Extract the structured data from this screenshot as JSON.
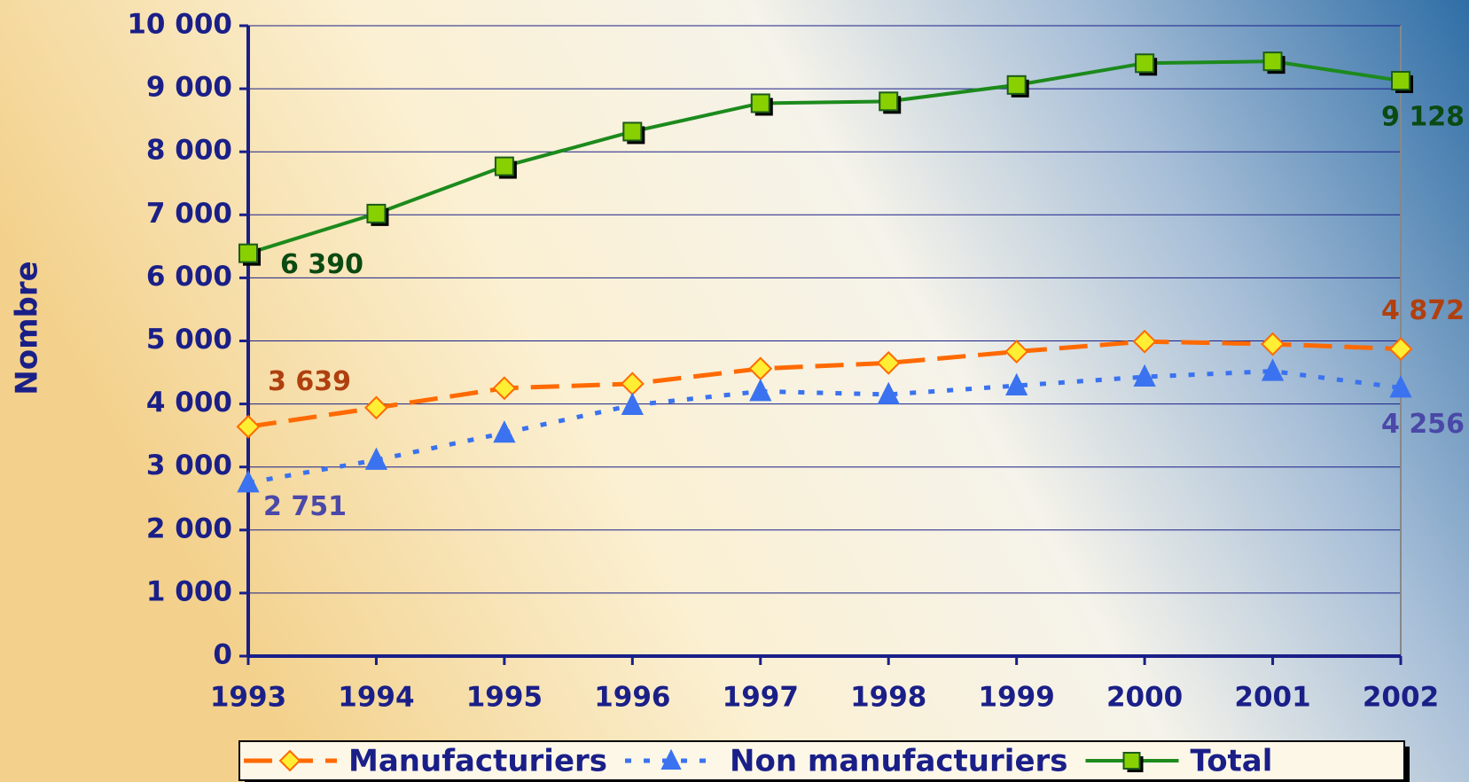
{
  "chart_data": {
    "type": "line",
    "y_label": "Nombre",
    "categories": [
      "1993",
      "1994",
      "1995",
      "1996",
      "1997",
      "1998",
      "1999",
      "2000",
      "2001",
      "2002"
    ],
    "series": [
      {
        "name": "Manufacturiers",
        "color": "#ff6a00",
        "values": [
          3639,
          3940,
          4250,
          4320,
          4560,
          4650,
          4830,
          4990,
          4950,
          4872
        ],
        "value_labels": [
          "3 639",
          null,
          null,
          null,
          null,
          null,
          null,
          null,
          null,
          "4 872"
        ]
      },
      {
        "name": "Non manufacturiers",
        "color": "#3a72f0",
        "values": [
          2751,
          3110,
          3540,
          3980,
          4200,
          4150,
          4290,
          4430,
          4520,
          4256
        ],
        "value_labels": [
          "2 751",
          null,
          null,
          null,
          null,
          null,
          null,
          null,
          null,
          "4 256"
        ]
      },
      {
        "name": "Total",
        "color": "#1c8a1c",
        "values": [
          6390,
          7020,
          7770,
          8320,
          8770,
          8800,
          9060,
          9405,
          9435,
          9128
        ],
        "value_labels": [
          "6 390",
          null,
          null,
          null,
          null,
          null,
          null,
          null,
          null,
          "9 128"
        ]
      }
    ],
    "ylim": [
      0,
      10000
    ],
    "yticks": [
      0,
      {
        "value": 1000,
        "label": "1 000"
      },
      {
        "value": 2000,
        "label": "2 000"
      },
      {
        "value": 3000,
        "label": "3 000"
      },
      {
        "value": 4000,
        "label": "4 000"
      },
      {
        "value": 5000,
        "label": "5 000"
      },
      {
        "value": 6000,
        "label": "6 000"
      },
      {
        "value": 7000,
        "label": "7 000"
      },
      {
        "value": 8000,
        "label": "8 000"
      },
      {
        "value": 9000,
        "label": "9 000"
      },
      {
        "value": 10000,
        "label": "10 000"
      }
    ],
    "grid": true,
    "legend": "bottom"
  }
}
